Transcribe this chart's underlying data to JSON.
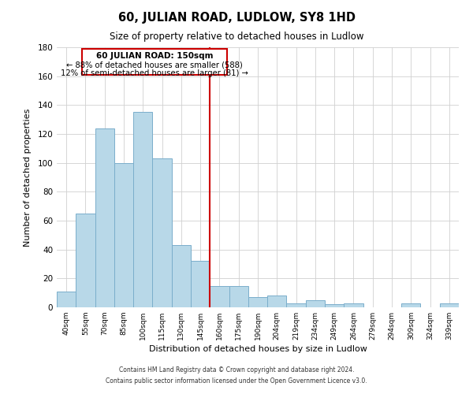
{
  "title": "60, JULIAN ROAD, LUDLOW, SY8 1HD",
  "subtitle": "Size of property relative to detached houses in Ludlow",
  "xlabel": "Distribution of detached houses by size in Ludlow",
  "ylabel": "Number of detached properties",
  "footer_lines": [
    "Contains HM Land Registry data © Crown copyright and database right 2024.",
    "Contains public sector information licensed under the Open Government Licence v3.0."
  ],
  "bar_labels": [
    "40sqm",
    "55sqm",
    "70sqm",
    "85sqm",
    "100sqm",
    "115sqm",
    "130sqm",
    "145sqm",
    "160sqm",
    "175sqm",
    "190sqm",
    "204sqm",
    "219sqm",
    "234sqm",
    "249sqm",
    "264sqm",
    "279sqm",
    "294sqm",
    "309sqm",
    "324sqm",
    "339sqm"
  ],
  "bar_values": [
    11,
    65,
    124,
    100,
    135,
    103,
    43,
    32,
    15,
    15,
    7,
    8,
    3,
    5,
    2,
    3,
    0,
    0,
    3,
    0,
    3
  ],
  "bar_color": "#b8d8e8",
  "bar_edge_color": "#7baecb",
  "property_label": "60 JULIAN ROAD: 150sqm",
  "annotation_line1": "← 88% of detached houses are smaller (588)",
  "annotation_line2": "12% of semi-detached houses are larger (81) →",
  "vline_color": "#cc0000",
  "ylim": [
    0,
    180
  ],
  "yticks": [
    0,
    20,
    40,
    60,
    80,
    100,
    120,
    140,
    160,
    180
  ],
  "background_color": "#ffffff",
  "grid_color": "#d0d0d0"
}
